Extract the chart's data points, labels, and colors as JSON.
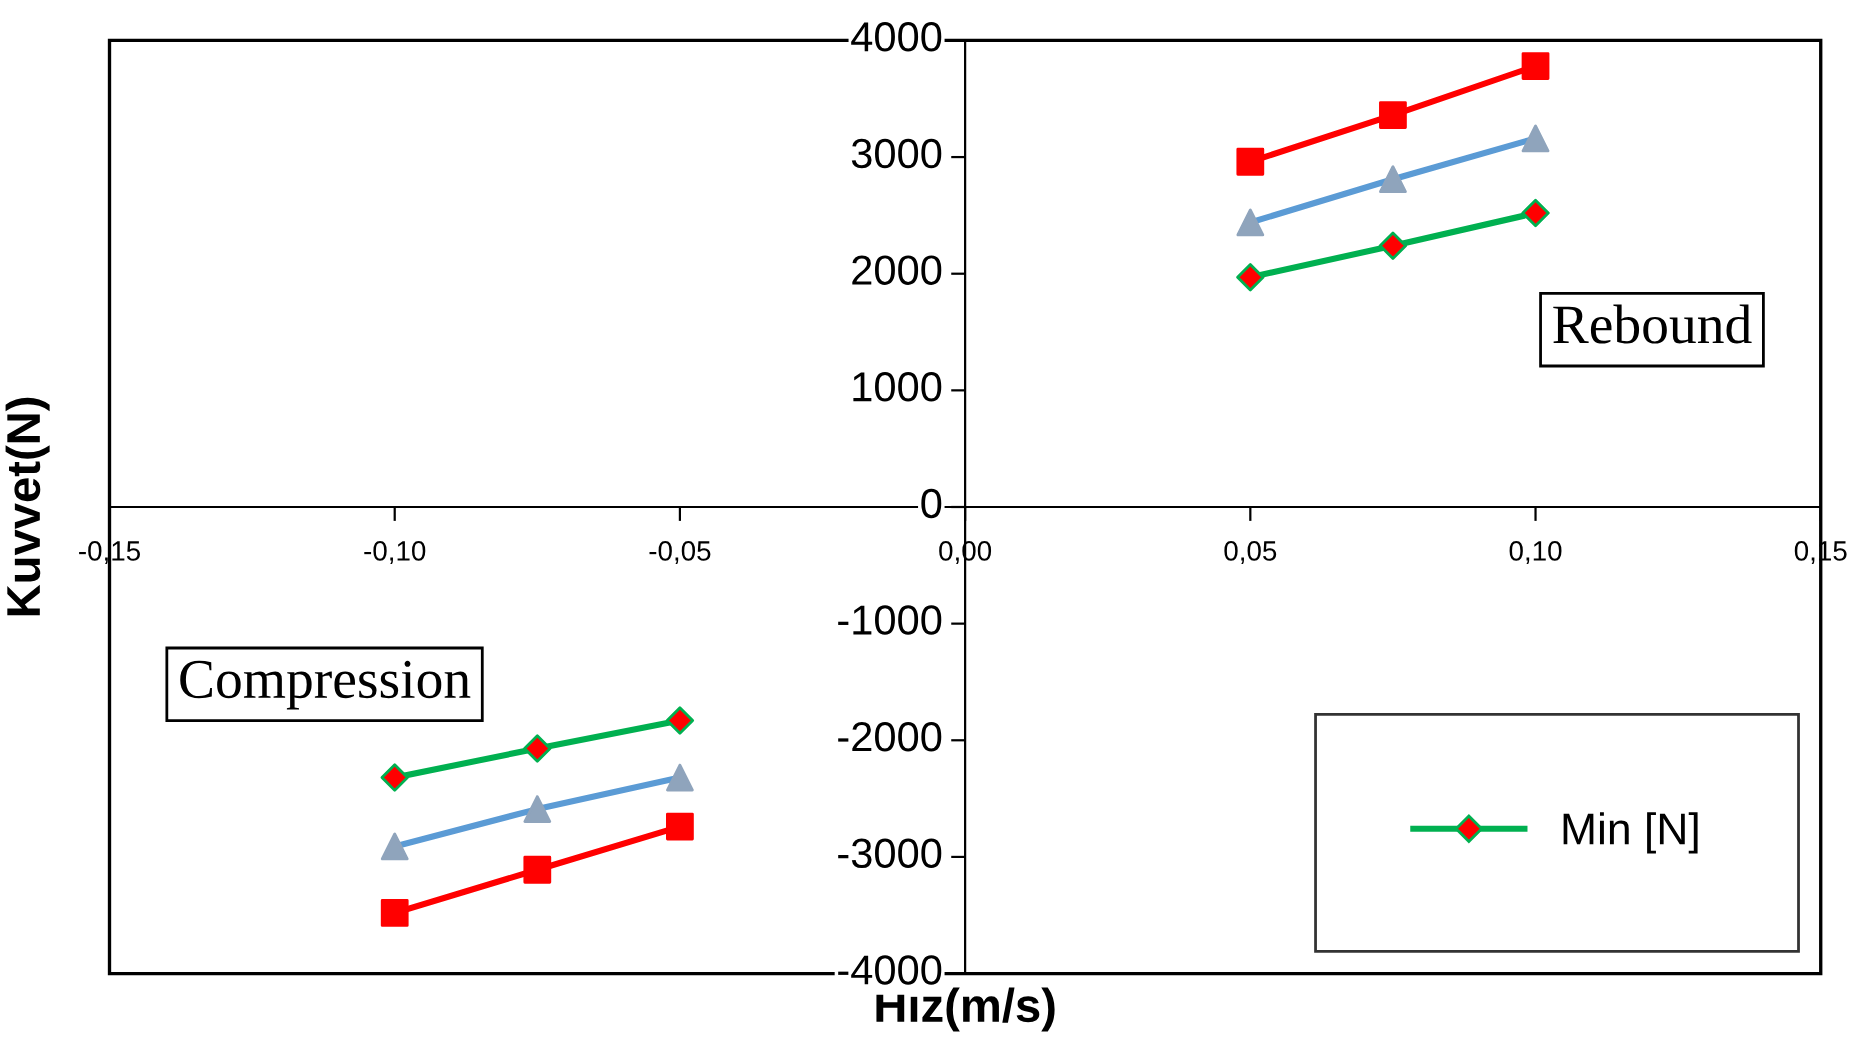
{
  "chart_data": {
    "type": "line",
    "xlabel": "Hız(m/s)",
    "ylabel": "Kuvvet(N)",
    "x": [
      -0.1,
      -0.075,
      -0.05,
      0,
      0.05,
      0.075,
      0.1
    ],
    "series": [
      {
        "color": "#ff0000",
        "marker": "square",
        "colors": [
          "#ff0000",
          "#ff0000",
          "#ff0000",
          "#ff0000",
          "#ff0000",
          "#ff0000",
          "#ff0000"
        ],
        "values": [
          -3480,
          -3110,
          -2740,
          null,
          2960,
          3360,
          3780
        ]
      },
      {
        "color": "#5b9bd5",
        "marker": "triangle",
        "colors": [
          "#8fa4bc",
          "#8fa4bc",
          "#8fa4bc",
          "#8fa4bc",
          "#8fa4bc",
          "#8fa4bc",
          "#8fa4bc"
        ],
        "values": [
          -2910,
          -2590,
          -2320,
          null,
          2440,
          2810,
          3160
        ]
      },
      {
        "name": "Min [N]",
        "color": "#00b050",
        "marker": "diamond",
        "colors": [
          "#ff0000",
          "#ff0000",
          "#ff0000",
          "#ff0000",
          "#ff0000",
          "#ff0000",
          "#ff0000"
        ],
        "values": [
          -2320,
          -2070,
          -1830,
          null,
          1970,
          2240,
          2520
        ]
      }
    ],
    "xlim": [
      -0.15,
      0.15
    ],
    "ylim": [
      -4000,
      4000
    ],
    "xticks": [
      {
        "value": -0.15,
        "label": "-0,15"
      },
      {
        "value": -0.1,
        "label": "-0,10"
      },
      {
        "value": -0.05,
        "label": "-0,05"
      },
      {
        "value": 0,
        "label": "0,00"
      },
      {
        "value": 0.05,
        "label": "0,05"
      },
      {
        "value": 0.1,
        "label": "0,10"
      },
      {
        "value": 0.15,
        "label": "0,15"
      }
    ],
    "yticks": [
      -4000,
      -3000,
      -2000,
      -1000,
      0,
      1000,
      2000,
      3000,
      4000
    ],
    "annotations": [
      "Rebound",
      "Compression"
    ],
    "grid": false,
    "legend": "bottom right"
  }
}
